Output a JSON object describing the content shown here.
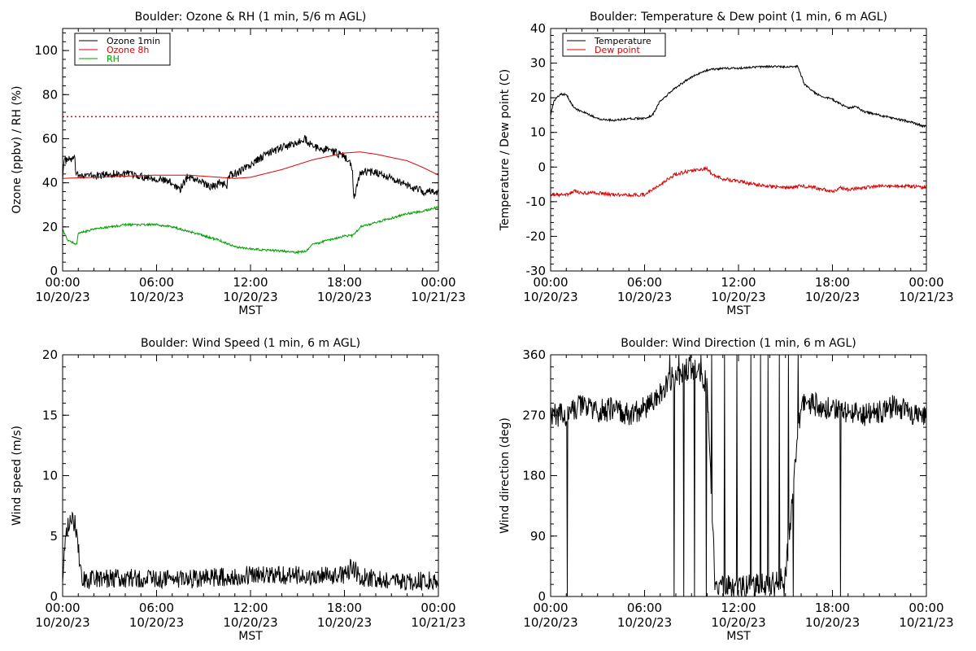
{
  "chart_data": [
    {
      "type": "line",
      "title": "Boulder: Ozone & RH (1 min, 5/6 m AGL)",
      "xlabel": "MST",
      "ylabel": "Ozone (ppbv) / RH (%)",
      "xlim": [
        0,
        24
      ],
      "ylim": [
        0,
        110
      ],
      "yticks": [
        0,
        20,
        40,
        60,
        80,
        100
      ],
      "xticks": [
        {
          "time": "00:00",
          "date": "10/20/23"
        },
        {
          "time": "06:00",
          "date": "10/20/23"
        },
        {
          "time": "12:00",
          "date": "10/20/23"
        },
        {
          "time": "18:00",
          "date": "10/20/23"
        },
        {
          "time": "00:00",
          "date": "10/21/23"
        }
      ],
      "reference_line": {
        "y": 70,
        "color": "#ee0000",
        "style": "dotted"
      },
      "legend_position": "top-left",
      "series": [
        {
          "name": "Ozone 1min",
          "color": "#000000",
          "noise": 1.8,
          "x": [
            0,
            0.1,
            0.8,
            0.85,
            1,
            2,
            3,
            4,
            5,
            6,
            7,
            7.5,
            8,
            9,
            9.5,
            10,
            10.5,
            10.6,
            11,
            12,
            13,
            14,
            15,
            15.5,
            16,
            17,
            18,
            18.5,
            18.6,
            19,
            20,
            21,
            22,
            23,
            24
          ],
          "y": [
            43,
            50,
            51,
            42,
            44,
            43,
            44,
            44,
            43,
            42,
            40,
            37,
            43,
            40,
            38,
            40,
            39,
            43,
            44,
            48,
            53,
            56,
            58,
            60,
            56,
            55,
            52,
            47,
            32,
            45,
            45,
            42,
            39,
            36,
            36
          ]
        },
        {
          "name": "Ozone 8h",
          "color": "#dd0000",
          "noise": 0,
          "x": [
            0,
            2,
            4,
            6,
            8,
            10,
            11,
            12,
            14,
            16,
            18,
            19,
            20,
            22,
            23,
            24
          ],
          "y": [
            42,
            42.5,
            43,
            43.5,
            43.5,
            42.5,
            42,
            42.5,
            46,
            50.5,
            53.5,
            54,
            53,
            50,
            47,
            43.5
          ]
        },
        {
          "name": "RH",
          "color": "#00a000",
          "noise": 0.5,
          "x": [
            0,
            0.3,
            0.9,
            1,
            2,
            3,
            4,
            5,
            6,
            7,
            8,
            9,
            10,
            11,
            12,
            14,
            15,
            15.5,
            16,
            17,
            18,
            18.5,
            18.8,
            19,
            20,
            21,
            22,
            23,
            24
          ],
          "y": [
            19,
            14,
            12,
            17,
            19,
            20,
            21,
            21,
            21,
            20,
            18,
            16,
            14,
            11,
            10,
            9,
            8.5,
            9,
            12,
            14,
            16,
            16,
            18,
            20,
            22,
            24,
            26,
            27,
            29
          ]
        }
      ]
    },
    {
      "type": "line",
      "title": "Boulder: Temperature & Dew point (1 min, 6 m AGL)",
      "xlabel": "MST",
      "ylabel": "Temperature / Dew point (C)",
      "xlim": [
        0,
        24
      ],
      "ylim": [
        -30,
        40
      ],
      "yticks": [
        -30,
        -20,
        -10,
        0,
        10,
        20,
        30,
        40
      ],
      "xticks": [
        {
          "time": "00:00",
          "date": "10/20/23"
        },
        {
          "time": "06:00",
          "date": "10/20/23"
        },
        {
          "time": "12:00",
          "date": "10/20/23"
        },
        {
          "time": "18:00",
          "date": "10/20/23"
        },
        {
          "time": "00:00",
          "date": "10/21/23"
        }
      ],
      "legend_position": "top-left",
      "series": [
        {
          "name": "Temperature",
          "color": "#000000",
          "noise": 0.3,
          "x": [
            0,
            0.2,
            0.6,
            1,
            1.5,
            2,
            3,
            4,
            5,
            6,
            6.5,
            7,
            8,
            9,
            10,
            11,
            12,
            13,
            14,
            15,
            15.8,
            16.2,
            17,
            18,
            19,
            19.5,
            20,
            21,
            22,
            23,
            24
          ],
          "y": [
            15,
            19,
            21,
            21,
            17,
            16,
            14,
            13.5,
            14,
            14,
            15,
            19,
            23,
            26,
            28,
            28.5,
            28.5,
            28.8,
            29,
            29,
            29,
            24,
            21,
            19.5,
            17,
            17.5,
            16,
            15,
            14,
            13,
            11.5
          ]
        },
        {
          "name": "Dew point",
          "color": "#dd0000",
          "noise": 0.5,
          "x": [
            0,
            1,
            1.5,
            2,
            3,
            4,
            5,
            6,
            6.3,
            7,
            8,
            9,
            10,
            10.3,
            11,
            12,
            13,
            14,
            15,
            16,
            17,
            18,
            18.5,
            19,
            20,
            21,
            22,
            23,
            24
          ],
          "y": [
            -8,
            -8,
            -7,
            -7.5,
            -7.5,
            -8,
            -8,
            -8,
            -7,
            -5,
            -2,
            -1,
            -0.5,
            -2,
            -3.5,
            -4,
            -5,
            -5.5,
            -6,
            -5.5,
            -6,
            -7,
            -6,
            -6.5,
            -6,
            -5.5,
            -5.5,
            -5.5,
            -6
          ]
        }
      ]
    },
    {
      "type": "line",
      "title": "Boulder: Wind Speed (1 min, 6 m AGL)",
      "xlabel": "MST",
      "ylabel": "Wind speed (m/s)",
      "xlim": [
        0,
        24
      ],
      "ylim": [
        0,
        20
      ],
      "yticks": [
        0,
        5,
        10,
        15,
        20
      ],
      "xticks": [
        {
          "time": "00:00",
          "date": "10/20/23"
        },
        {
          "time": "06:00",
          "date": "10/20/23"
        },
        {
          "time": "12:00",
          "date": "10/20/23"
        },
        {
          "time": "18:00",
          "date": "10/20/23"
        },
        {
          "time": "00:00",
          "date": "10/21/23"
        }
      ],
      "series": [
        {
          "name": "Wind speed",
          "color": "#000000",
          "noise": 0.8,
          "x": [
            0,
            0.2,
            0.6,
            0.8,
            1,
            1.2,
            1.5,
            2,
            4,
            6,
            8,
            10,
            12,
            14,
            16,
            18,
            18.5,
            19,
            20,
            22,
            24
          ],
          "y": [
            2,
            5.5,
            6.5,
            6,
            4,
            1.5,
            1.2,
            1.5,
            1.5,
            1.5,
            1.4,
            1.6,
            1.8,
            1.8,
            1.7,
            1.8,
            2.5,
            1.6,
            1.5,
            1.2,
            1.4
          ]
        }
      ]
    },
    {
      "type": "line",
      "title": "Boulder: Wind Direction (1 min, 6 m AGL)",
      "xlabel": "MST",
      "ylabel": "Wind direction (deg)",
      "xlim": [
        0,
        24
      ],
      "ylim": [
        0,
        360
      ],
      "yticks": [
        0,
        90,
        180,
        270,
        360
      ],
      "xticks": [
        {
          "time": "00:00",
          "date": "10/20/23"
        },
        {
          "time": "06:00",
          "date": "10/20/23"
        },
        {
          "time": "12:00",
          "date": "10/20/23"
        },
        {
          "time": "18:00",
          "date": "10/20/23"
        },
        {
          "time": "00:00",
          "date": "10/21/23"
        }
      ],
      "series": [
        {
          "name": "Wind direction",
          "color": "#000000",
          "noise": 18,
          "x": [
            0,
            1,
            2,
            3,
            4,
            5,
            6,
            7,
            7.5,
            8,
            9,
            10,
            10.5,
            11,
            12,
            13,
            14,
            15,
            16,
            17,
            18,
            19,
            20,
            21,
            22,
            23,
            24
          ],
          "y": [
            270,
            270,
            285,
            275,
            280,
            270,
            280,
            300,
            320,
            330,
            340,
            320,
            20,
            15,
            15,
            15,
            20,
            30,
            290,
            285,
            280,
            275,
            270,
            275,
            285,
            275,
            270
          ],
          "spikes": [
            {
              "x": 1.05,
              "y": 0
            },
            {
              "x": 7.6,
              "y": 360
            },
            {
              "x": 7.9,
              "y": 0
            },
            {
              "x": 8.2,
              "y": 360
            },
            {
              "x": 8.5,
              "y": 0
            },
            {
              "x": 8.9,
              "y": 360
            },
            {
              "x": 9.2,
              "y": 0
            },
            {
              "x": 9.6,
              "y": 360
            },
            {
              "x": 9.95,
              "y": 0
            },
            {
              "x": 10.3,
              "y": 360
            },
            {
              "x": 11.1,
              "y": 360
            },
            {
              "x": 11.9,
              "y": 360
            },
            {
              "x": 12.8,
              "y": 360
            },
            {
              "x": 13.4,
              "y": 360
            },
            {
              "x": 13.9,
              "y": 360
            },
            {
              "x": 14.3,
              "y": 0
            },
            {
              "x": 14.6,
              "y": 360
            },
            {
              "x": 14.9,
              "y": 0
            },
            {
              "x": 15.2,
              "y": 360
            },
            {
              "x": 15.5,
              "y": 0
            },
            {
              "x": 15.8,
              "y": 360
            },
            {
              "x": 18.5,
              "y": 0
            }
          ]
        }
      ]
    }
  ]
}
